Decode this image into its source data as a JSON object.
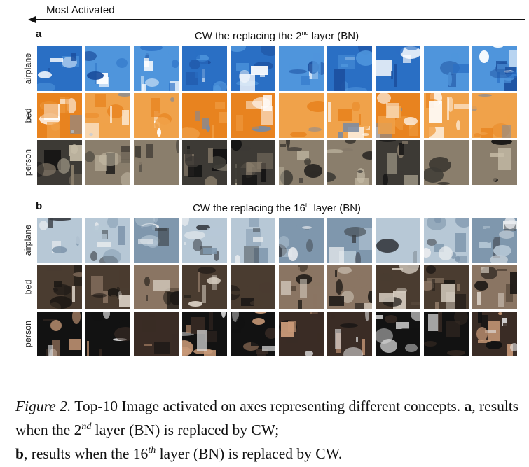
{
  "header": {
    "direction_label": "Most Activated"
  },
  "panels": [
    {
      "letter": "a",
      "title_prefix": "CW the replacing the 2",
      "title_sup": "nd",
      "title_suffix": " layer (BN)",
      "rows": [
        {
          "label": "airplane",
          "palette": [
            "#2a6fc4",
            "#4f95dc",
            "#1c4f9e",
            "#ffffff"
          ]
        },
        {
          "label": "bed",
          "palette": [
            "#e8831f",
            "#f0a24a",
            "#7a8aa0",
            "#ffffff"
          ]
        },
        {
          "label": "person",
          "palette": [
            "#3d3a35",
            "#8a7e6c",
            "#c7bda8",
            "#111111"
          ]
        }
      ]
    },
    {
      "letter": "b",
      "title_prefix": "CW the replacing the 16",
      "title_sup": "th",
      "title_suffix": " layer (BN)",
      "rows": [
        {
          "label": "airplane",
          "palette": [
            "#b7c8d6",
            "#7f97ad",
            "#e9ecef",
            "#3a3f45"
          ]
        },
        {
          "label": "bed",
          "palette": [
            "#4a3c30",
            "#8a7563",
            "#d8cfc3",
            "#1e1a16"
          ]
        },
        {
          "label": "person",
          "palette": [
            "#121212",
            "#3a2c25",
            "#c99a78",
            "#e2e2e2"
          ]
        }
      ]
    }
  ],
  "caption": {
    "figure_label": "Figure 2.",
    "sentence": " Top-10 Image activated on axes representing different concepts. ",
    "a_label": "a",
    "a_text_before": ", results when the 2",
    "a_sup": "nd",
    "a_text_after": " layer (BN) is replaced by CW;",
    "b_label": "b",
    "b_text_before": ", results when the 16",
    "b_sup": "th",
    "b_text_after": " layer (BN) is replaced by CW."
  }
}
